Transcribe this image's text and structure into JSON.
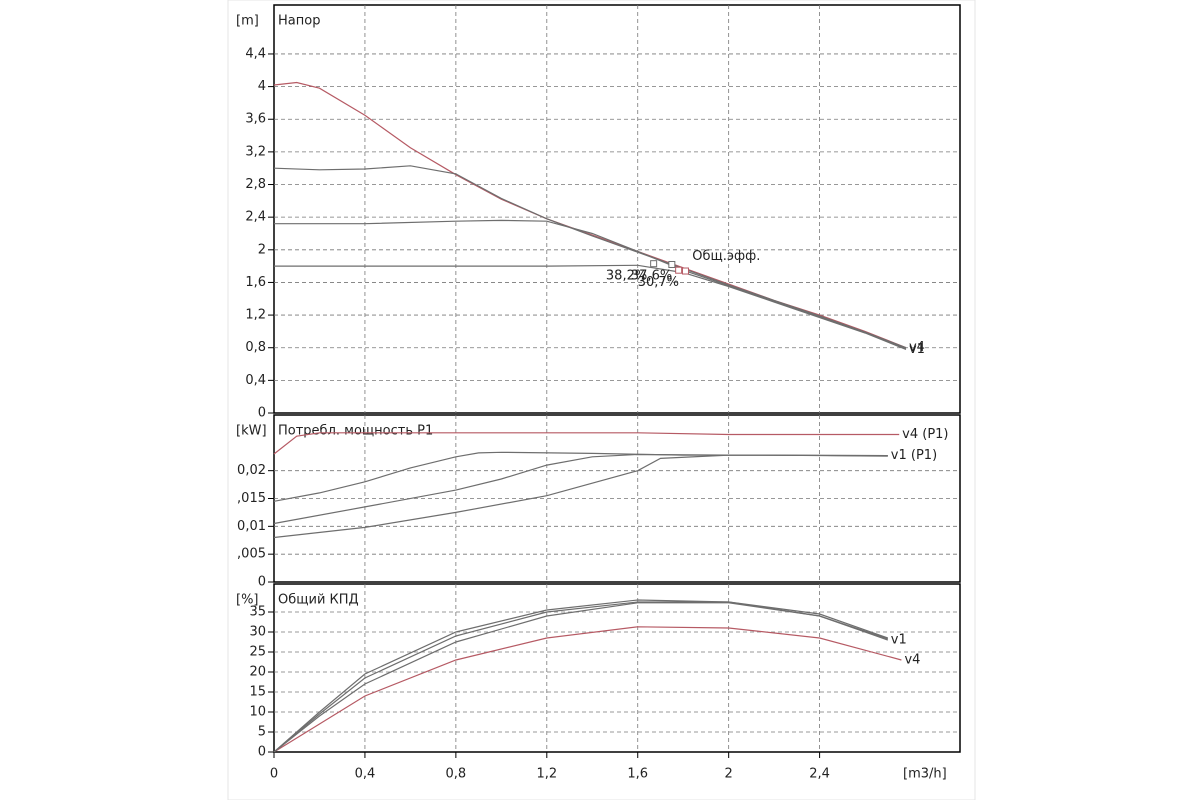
{
  "chart_data": [
    {
      "type": "line",
      "title": "Напор",
      "ylabel": "[m]",
      "ylim": [
        0,
        5
      ],
      "yticks": [
        0,
        {
          "value": 0.4,
          "label": "0,4"
        },
        {
          "value": 0.8,
          "label": "0,8"
        },
        {
          "value": 1.2,
          "label": "1,2"
        },
        {
          "value": 1.6,
          "label": "1,6"
        },
        2,
        {
          "value": 2.4,
          "label": "2,4"
        },
        {
          "value": 2.8,
          "label": "2,8"
        },
        {
          "value": 3.2,
          "label": "3,2"
        },
        {
          "value": 3.6,
          "label": "3,6"
        },
        4,
        {
          "value": 4.4,
          "label": "4,4"
        }
      ],
      "series": [
        {
          "name": "v4",
          "color": "#b65a64",
          "x": [
            0,
            0.1,
            0.2,
            0.4,
            0.6,
            0.8,
            1.0,
            1.2,
            1.4,
            1.6,
            1.8,
            2.0,
            2.2,
            2.4,
            2.6,
            2.78
          ],
          "values": [
            4.02,
            4.05,
            3.98,
            3.65,
            3.25,
            2.92,
            2.62,
            2.38,
            2.18,
            1.98,
            1.78,
            1.58,
            1.38,
            1.2,
            1.0,
            0.8
          ]
        },
        {
          "color": "#6e6e6e",
          "x": [
            0,
            0.2,
            0.4,
            0.6,
            0.8,
            1.0,
            1.2,
            1.4,
            1.6,
            1.8,
            2.0,
            2.2,
            2.4,
            2.6,
            2.78
          ],
          "values": [
            3.0,
            2.98,
            2.99,
            3.03,
            2.93,
            2.63,
            2.38,
            2.17,
            1.97,
            1.77,
            1.57,
            1.38,
            1.19,
            0.99,
            0.8
          ]
        },
        {
          "color": "#6e6e6e",
          "x": [
            0,
            0.4,
            0.8,
            1.0,
            1.2,
            1.4,
            1.6,
            1.8,
            2.0,
            2.2,
            2.4,
            2.6,
            2.78
          ],
          "values": [
            2.32,
            2.32,
            2.35,
            2.36,
            2.35,
            2.2,
            1.98,
            1.75,
            1.56,
            1.37,
            1.18,
            0.99,
            0.79
          ]
        },
        {
          "name": "v1",
          "color": "#6e6e6e",
          "x": [
            0,
            0.4,
            0.8,
            1.2,
            1.6,
            1.8,
            2.0,
            2.2,
            2.4,
            2.6,
            2.78
          ],
          "values": [
            1.8,
            1.8,
            1.8,
            1.8,
            1.81,
            1.72,
            1.55,
            1.36,
            1.17,
            0.98,
            0.78
          ]
        }
      ],
      "markers": [
        {
          "x": 1.67,
          "y": 1.83,
          "color": "#6e6e6e"
        },
        {
          "x": 1.75,
          "y": 1.82,
          "color": "#6e6e6e"
        },
        {
          "x": 1.78,
          "y": 1.75,
          "color": "#b65a64"
        },
        {
          "x": 1.81,
          "y": 1.74,
          "color": "#b65a64"
        }
      ],
      "annotations": [
        {
          "text": "Общ.эфф.",
          "x": 1.84,
          "y": 1.92,
          "color": "#c0707a"
        },
        {
          "text": "38,2%",
          "x": 1.46,
          "y": 1.68,
          "color": "#8a8a8a"
        },
        {
          "text": "37,6%",
          "x": 1.57,
          "y": 1.68,
          "color": "#8a8a8a"
        },
        {
          "text": "30,7%",
          "x": 1.6,
          "y": 1.6,
          "color": "#c0707a"
        }
      ]
    },
    {
      "type": "line",
      "title": "Потребл. мощность P1",
      "ylabel": "[kW]",
      "ylim": [
        0,
        0.03
      ],
      "yticks": [
        0,
        {
          "value": 0.005,
          "label": ",005"
        },
        {
          "value": 0.01,
          "label": "0,01"
        },
        {
          "value": 0.015,
          "label": ",015"
        },
        {
          "value": 0.02,
          "label": "0,02"
        }
      ],
      "series": [
        {
          "name": "v4 (P1)",
          "color": "#b65a64",
          "x": [
            0,
            0.1,
            0.2,
            0.4,
            1.0,
            1.6,
            2.0,
            2.4,
            2.75
          ],
          "values": [
            0.023,
            0.0262,
            0.0268,
            0.0268,
            0.0268,
            0.0268,
            0.0265,
            0.0265,
            0.0265
          ]
        },
        {
          "color": "#6e6e6e",
          "x": [
            0,
            0.2,
            0.4,
            0.6,
            0.8,
            0.9,
            1.0,
            1.4,
            1.8,
            2.2,
            2.7
          ],
          "values": [
            0.0145,
            0.016,
            0.018,
            0.0205,
            0.0225,
            0.0232,
            0.0233,
            0.0231,
            0.0228,
            0.0228,
            0.0226
          ]
        },
        {
          "color": "#6e6e6e",
          "x": [
            0,
            0.4,
            0.8,
            1.0,
            1.2,
            1.4,
            1.6,
            2.0,
            2.7
          ],
          "values": [
            0.0105,
            0.0135,
            0.0165,
            0.0185,
            0.021,
            0.0225,
            0.0229,
            0.0228,
            0.0227
          ]
        },
        {
          "name": "v1 (P1)",
          "color": "#6e6e6e",
          "x": [
            0,
            0.4,
            0.8,
            1.2,
            1.6,
            1.7,
            2.0,
            2.7
          ],
          "values": [
            0.008,
            0.0098,
            0.0125,
            0.0155,
            0.02,
            0.0222,
            0.0228,
            0.0227
          ]
        }
      ]
    },
    {
      "type": "line",
      "title": "Общий КПД",
      "ylabel": "[%]",
      "ylim": [
        0,
        42
      ],
      "yticks": [
        0,
        5,
        10,
        15,
        20,
        25,
        30,
        35
      ],
      "xlabel": "[m3/h]",
      "xlim": [
        0,
        3
      ],
      "xticks": [
        0,
        {
          "value": 0.4,
          "label": "0,4"
        },
        {
          "value": 0.8,
          "label": "0,8"
        },
        {
          "value": 1.2,
          "label": "1,2"
        },
        {
          "value": 1.6,
          "label": "1,6"
        },
        2,
        {
          "value": 2.4,
          "label": "2,4"
        }
      ],
      "series": [
        {
          "name": "v4",
          "color": "#b65a64",
          "x": [
            0,
            0.2,
            0.4,
            0.8,
            1.2,
            1.6,
            2.0,
            2.4,
            2.76
          ],
          "values": [
            0,
            7,
            14,
            23,
            28.5,
            31.3,
            31,
            28.5,
            23
          ]
        },
        {
          "color": "#6e6e6e",
          "x": [
            0,
            0.2,
            0.4,
            0.8,
            1.2,
            1.6,
            2.0,
            2.4,
            2.7
          ],
          "values": [
            0,
            10,
            19.5,
            30,
            35.5,
            38,
            37.5,
            34.5,
            28.5
          ]
        },
        {
          "color": "#6e6e6e",
          "x": [
            0,
            0.2,
            0.4,
            0.8,
            1.2,
            1.6,
            2.0,
            2.4,
            2.7
          ],
          "values": [
            0,
            9.5,
            18.5,
            29,
            35,
            37.5,
            37.5,
            34,
            28.3
          ]
        },
        {
          "name": "v1",
          "color": "#6e6e6e",
          "x": [
            0,
            0.2,
            0.4,
            0.8,
            1.2,
            1.6,
            2.0,
            2.4,
            2.7
          ],
          "values": [
            0,
            9,
            17,
            27.5,
            34,
            37.3,
            37.3,
            34,
            28
          ]
        }
      ]
    }
  ]
}
